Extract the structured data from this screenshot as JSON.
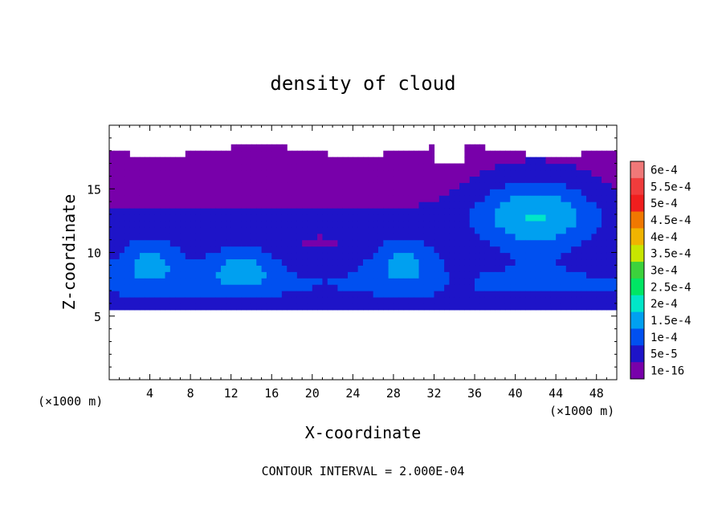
{
  "chart_data": {
    "type": "heatmap",
    "title": "density of cloud",
    "xlabel": "X-coordinate",
    "ylabel": "Z-coordinate",
    "x_unit": "(×1000 m)",
    "y_unit": "(×1000 m)",
    "xlim": [
      0,
      50
    ],
    "ylim": [
      0,
      20
    ],
    "x_ticks": [
      4,
      8,
      12,
      16,
      20,
      24,
      28,
      32,
      36,
      40,
      44,
      48
    ],
    "x_tick_labels": [
      "4",
      "8",
      "12",
      "16",
      "20",
      "24",
      "28",
      "32",
      "36",
      "40",
      "44",
      "48"
    ],
    "y_ticks": [
      5,
      10,
      15
    ],
    "y_tick_labels": [
      "5",
      "10",
      "15"
    ],
    "footer": "CONTOUR INTERVAL = 2.000E-04",
    "colorbar": {
      "levels": [
        {
          "label": "6e-4",
          "color": "#f07878"
        },
        {
          "label": "5.5e-4",
          "color": "#f03c3c"
        },
        {
          "label": "5e-4",
          "color": "#f01e1e"
        },
        {
          "label": "4.5e-4",
          "color": "#f07800"
        },
        {
          "label": "4e-4",
          "color": "#f0b400"
        },
        {
          "label": "3.5e-4",
          "color": "#c8e600"
        },
        {
          "label": "3e-4",
          "color": "#3cd23c"
        },
        {
          "label": "2.5e-4",
          "color": "#00e664"
        },
        {
          "label": "2e-4",
          "color": "#00e6c8"
        },
        {
          "label": "1.5e-4",
          "color": "#00a0f0"
        },
        {
          "label": "1e-4",
          "color": "#0050f0"
        },
        {
          "label": "5e-5",
          "color": "#1e14c8"
        },
        {
          "label": "1e-16",
          "color": "#7800aa"
        }
      ]
    },
    "field": {
      "description_levels": "cloud density between z≈5.5 and z≈18 km",
      "cloud_base_km": 5.5,
      "cloud_top_km": 18,
      "cores": [
        {
          "x": 4,
          "z": 9.5,
          "value": 0.00015
        },
        {
          "x": 13,
          "z": 9.0,
          "value": 0.00015
        },
        {
          "x": 29,
          "z": 9.5,
          "value": 0.00015
        },
        {
          "x": 42,
          "z": 13.0,
          "value": 0.0002
        }
      ]
    }
  }
}
